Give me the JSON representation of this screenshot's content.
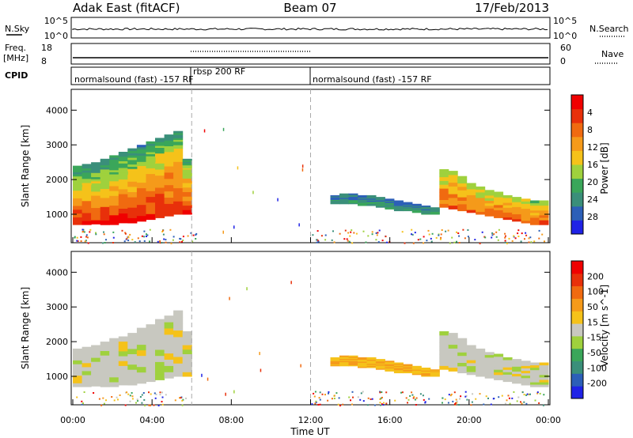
{
  "header": {
    "station": "Adak East (fitACF)",
    "beam": "Beam 07",
    "date": "17/Feb/2013"
  },
  "summary_panels": {
    "nsky_label": "N.Sky",
    "nsky_ticks": [
      "10^5",
      "10^0"
    ],
    "nsearch_label": "N.Search",
    "nsearch_ticks": [
      "10^5",
      "10^0"
    ],
    "freq_label": "Freq.",
    "freq_unit": "[MHz]",
    "freq_ticks": [
      "18",
      "8"
    ],
    "nave_label": "Nave",
    "nave_ticks": [
      "60",
      "0"
    ],
    "cpid_label": "CPID",
    "cpid_segments": [
      {
        "label": "normalsound (fast) -157 RF",
        "start": 0,
        "end": 6
      },
      {
        "label": "rbsp 200 RF",
        "start": 6,
        "end": 12
      },
      {
        "label": "normalsound (fast) -157 RF",
        "start": 12,
        "end": 24
      }
    ]
  },
  "chart_data": [
    {
      "type": "heatmap",
      "name": "power",
      "ylabel": "Slant Range [km]",
      "xlabel": "Time UT",
      "x_ticks": [
        "00:00",
        "04:00",
        "08:00",
        "12:00",
        "16:00",
        "20:00",
        "00:00"
      ],
      "y_ticks": [
        1000,
        2000,
        3000,
        4000
      ],
      "xlim": [
        0,
        24
      ],
      "ylim": [
        180,
        4600
      ],
      "colorbar": {
        "label": "Power [dB]",
        "ticks": [
          "4",
          "8",
          "12",
          "16",
          "20",
          "24",
          "28"
        ],
        "colors": [
          "#1f22e6",
          "#2c5fb8",
          "#3a8f7a",
          "#3aa65a",
          "#9fd13d",
          "#f5c21a",
          "#f59a1a",
          "#f06a10",
          "#e8300a",
          "#f00000"
        ]
      },
      "patches": [
        {
          "t0": 0.0,
          "t1": 6.0,
          "r_top": [
            1800,
            1850,
            1900,
            2000,
            2100,
            2150,
            2250,
            2400,
            2500,
            2650,
            2750,
            2900,
            2300
          ],
          "r_bot": [
            700,
            700,
            720,
            700,
            700,
            750,
            750,
            800,
            850,
            900,
            950,
            1000,
            1000
          ],
          "level": 0.85
        },
        {
          "t0": 0.0,
          "t1": 6.0,
          "r_top": [
            2400,
            2450,
            2500,
            2600,
            2700,
            2800,
            2900,
            3000,
            3100,
            3200,
            3300,
            3400,
            2600
          ],
          "r_bot": [
            1800,
            1850,
            1900,
            2000,
            2100,
            2150,
            2250,
            2400,
            2500,
            2650,
            2750,
            2900,
            2300
          ],
          "level": 0.45
        },
        {
          "t0": 13.0,
          "t1": 18.5,
          "r_top": [
            1550,
            1600,
            1600,
            1550,
            1550,
            1500,
            1450,
            1400,
            1350,
            1300,
            1250,
            1200
          ],
          "r_bot": [
            1300,
            1300,
            1300,
            1250,
            1250,
            1200,
            1150,
            1100,
            1100,
            1050,
            1000,
            1000
          ],
          "level": 0.3
        },
        {
          "t0": 18.5,
          "t1": 24.0,
          "r_top": [
            2300,
            2250,
            2100,
            1900,
            1800,
            1700,
            1650,
            1550,
            1500,
            1450,
            1400,
            1400
          ],
          "r_bot": [
            1200,
            1150,
            1100,
            1050,
            1000,
            950,
            900,
            850,
            800,
            750,
            700,
            700
          ],
          "level": 0.75
        }
      ]
    },
    {
      "type": "heatmap",
      "name": "velocity",
      "ylabel": "Slant Range [km]",
      "xlabel": "Time UT",
      "x_ticks": [
        "00:00",
        "04:00",
        "08:00",
        "12:00",
        "16:00",
        "20:00",
        "00:00"
      ],
      "y_ticks": [
        1000,
        2000,
        3000,
        4000
      ],
      "xlim": [
        0,
        24
      ],
      "ylim": [
        180,
        4600
      ],
      "colorbar": {
        "label": "Velocity [m s^-1]",
        "ticks": [
          "200",
          "100",
          "50",
          "15",
          "-15",
          "-50",
          "-100",
          "-200"
        ],
        "colors": [
          "#1f22e6",
          "#2c5fb8",
          "#3a8f7a",
          "#3aa65a",
          "#9fd13d",
          "#c8c8c0",
          "#f5c21a",
          "#f59a1a",
          "#f06a10",
          "#e8300a",
          "#f00000"
        ]
      },
      "patches": [
        {
          "t0": 0.0,
          "t1": 6.0,
          "r_top": [
            1800,
            1850,
            1900,
            2000,
            2100,
            2150,
            2250,
            2400,
            2500,
            2650,
            2750,
            2900,
            2300
          ],
          "r_bot": [
            700,
            700,
            720,
            700,
            700,
            750,
            750,
            800,
            850,
            900,
            950,
            1000,
            1000
          ],
          "level": 0.5
        },
        {
          "t0": 13.0,
          "t1": 18.5,
          "r_top": [
            1550,
            1600,
            1600,
            1550,
            1550,
            1500,
            1450,
            1400,
            1350,
            1300,
            1250,
            1200
          ],
          "r_bot": [
            1300,
            1300,
            1300,
            1250,
            1250,
            1200,
            1150,
            1100,
            1100,
            1050,
            1000,
            1000
          ],
          "level": 0.62
        },
        {
          "t0": 18.5,
          "t1": 24.0,
          "r_top": [
            2300,
            2250,
            2100,
            1900,
            1800,
            1700,
            1650,
            1550,
            1500,
            1450,
            1400,
            1400
          ],
          "r_bot": [
            1200,
            1150,
            1100,
            1050,
            1000,
            950,
            900,
            850,
            800,
            750,
            700,
            700
          ],
          "level": 0.5
        }
      ]
    }
  ]
}
